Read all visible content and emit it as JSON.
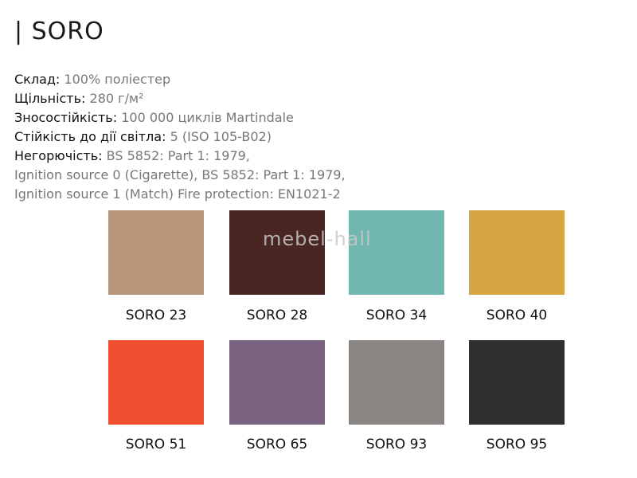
{
  "title": "| SORO",
  "specs": [
    {
      "label": "Склад:",
      "value": "100% поліестер"
    },
    {
      "label": "Щільність:",
      "value": "280 г/м²"
    },
    {
      "label": "Зносостійкість:",
      "value": "100 000 циклів Martindale"
    },
    {
      "label": "Стійкість до дії світла:",
      "value": "5 (ISO 105-B02)"
    },
    {
      "label": "Негорючість:",
      "value": "BS 5852: Part 1: 1979,"
    }
  ],
  "extra_lines": [
    "Ignition source 0 (Cigarette), BS 5852: Part 1: 1979,",
    "Ignition source 1 (Match) Fire protection: EN1021-2"
  ],
  "watermark": "mebel-hall",
  "swatches": [
    {
      "name": "SORO 23",
      "color": "#b8957a"
    },
    {
      "name": "SORO 28",
      "color": "#4a2622"
    },
    {
      "name": "SORO 34",
      "color": "#72b6b0"
    },
    {
      "name": "SORO 40",
      "color": "#d8a545"
    },
    {
      "name": "SORO 51",
      "color": "#f04f30"
    },
    {
      "name": "SORO 65",
      "color": "#7a6480"
    },
    {
      "name": "SORO 93",
      "color": "#8a8583"
    },
    {
      "name": "SORO 95",
      "color": "#2f2f31"
    }
  ]
}
